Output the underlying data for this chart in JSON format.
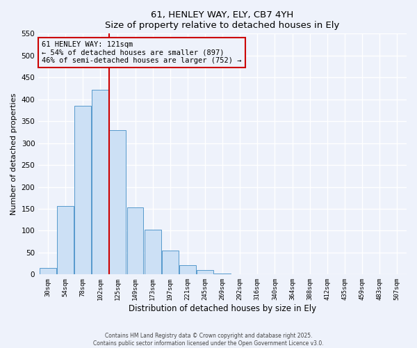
{
  "title": "61, HENLEY WAY, ELY, CB7 4YH",
  "subtitle": "Size of property relative to detached houses in Ely",
  "xlabel": "Distribution of detached houses by size in Ely",
  "ylabel": "Number of detached properties",
  "bar_labels": [
    "30sqm",
    "54sqm",
    "78sqm",
    "102sqm",
    "125sqm",
    "149sqm",
    "173sqm",
    "197sqm",
    "221sqm",
    "245sqm",
    "269sqm",
    "292sqm",
    "316sqm",
    "340sqm",
    "364sqm",
    "388sqm",
    "412sqm",
    "435sqm",
    "459sqm",
    "483sqm",
    "507sqm"
  ],
  "bar_values": [
    15,
    157,
    385,
    422,
    330,
    153,
    102,
    54,
    21,
    10,
    2,
    0,
    0,
    0,
    0,
    0,
    0,
    0,
    0,
    0,
    0
  ],
  "bar_color": "#cce0f5",
  "bar_edge_color": "#5599cc",
  "annotation_title": "61 HENLEY WAY: 121sqm",
  "annotation_line1": "← 54% of detached houses are smaller (897)",
  "annotation_line2": "46% of semi-detached houses are larger (752) →",
  "annotation_box_color": "#cc0000",
  "red_line_x": 3.5,
  "ylim": [
    0,
    550
  ],
  "yticks": [
    0,
    50,
    100,
    150,
    200,
    250,
    300,
    350,
    400,
    450,
    500,
    550
  ],
  "footer1": "Contains HM Land Registry data © Crown copyright and database right 2025.",
  "footer2": "Contains public sector information licensed under the Open Government Licence v3.0.",
  "bg_color": "#eef2fb",
  "grid_color": "#ffffff"
}
